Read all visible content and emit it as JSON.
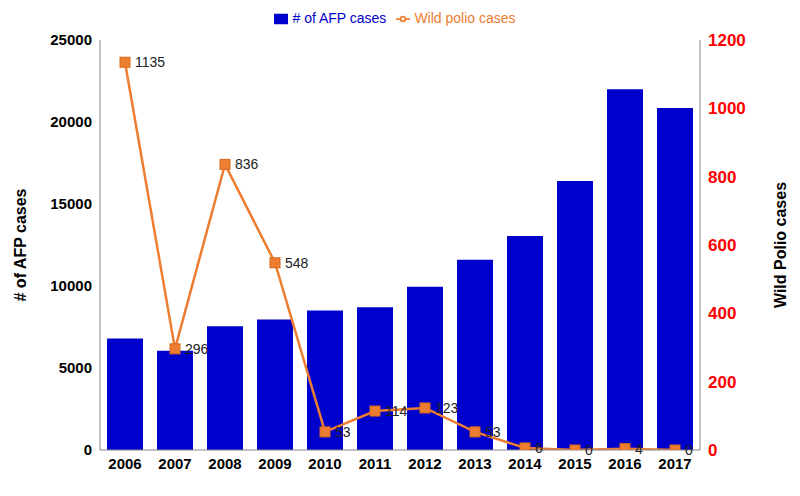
{
  "chart_data": {
    "type": "bar",
    "categories": [
      "2006",
      "2007",
      "2008",
      "2009",
      "2010",
      "2011",
      "2012",
      "2013",
      "2014",
      "2015",
      "2016",
      "2017"
    ],
    "series": [
      {
        "name": "# of AFP cases",
        "type": "bar",
        "color": "#0000cc",
        "values": [
          6800,
          6050,
          7550,
          7950,
          8500,
          8700,
          9950,
          11600,
          13050,
          16400,
          22000,
          20850
        ]
      },
      {
        "name": "Wild polio cases",
        "type": "line",
        "axis": "y2",
        "color": "#ed7d31",
        "marker": "square",
        "data_labels": true,
        "values": [
          1135,
          296,
          836,
          548,
          53,
          114,
          123,
          53,
          6,
          0,
          4,
          0
        ]
      }
    ],
    "ylabel": "# of AFP cases",
    "y2label": "Wild Polio cases",
    "ylim": [
      0,
      25000
    ],
    "yticks": [
      0,
      5000,
      10000,
      15000,
      20000,
      25000
    ],
    "y2lim": [
      0,
      1200
    ],
    "y2ticks": [
      0,
      200,
      400,
      600,
      800,
      1000,
      1200
    ],
    "legend": "top",
    "grid": false
  }
}
